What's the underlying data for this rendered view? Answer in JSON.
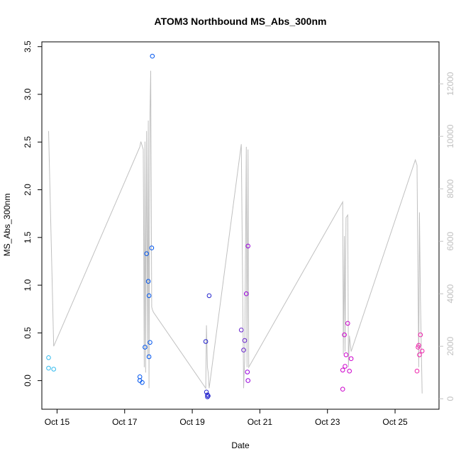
{
  "chart_data": {
    "type": "scatter",
    "title": "ATOM3 Northbound MS_Abs_300nm",
    "xlabel": "Date",
    "ylabel": "MS_Abs_300nm",
    "x_ticks": [
      "Oct 15",
      "Oct 17",
      "Oct 19",
      "Oct 21",
      "Oct 23",
      "Oct 25"
    ],
    "x_tick_values": [
      15,
      17,
      19,
      21,
      23,
      25
    ],
    "xlim": [
      14.55,
      26.3
    ],
    "ylim": [
      -0.3,
      3.55
    ],
    "y_ticks": [
      "0.0",
      "0.5",
      "1.0",
      "1.5",
      "2.0",
      "2.5",
      "3.0",
      "3.5"
    ],
    "y_tick_values": [
      0,
      0.5,
      1,
      1.5,
      2,
      2.5,
      3,
      3.5
    ],
    "y2_ticks": [
      "0",
      "2000",
      "4000",
      "6000",
      "8000",
      "10000",
      "12000"
    ],
    "y2_tick_values": [
      0,
      2000,
      4000,
      6000,
      8000,
      10000,
      12000
    ],
    "y2lim": [
      -400,
      13600
    ],
    "grid": false,
    "colors": {
      "series_line": "#c0c0c0",
      "axis": "#000000",
      "y2_axis": "#c0c0c0",
      "point_colors": [
        "#33bbee",
        "#0055ee",
        "#2222cc",
        "#6622cc",
        "#9900dd",
        "#cc00cc",
        "#ee22aa"
      ]
    },
    "series": [
      {
        "type": "scatter",
        "axis": "left",
        "x": [
          14.75,
          14.9,
          14.75,
          17.45,
          17.45,
          17.52,
          17.6,
          17.65,
          17.7,
          17.72,
          17.72,
          17.75,
          17.8,
          17.82,
          19.4,
          19.42,
          19.45,
          19.45,
          19.47,
          19.5,
          20.45,
          20.52,
          20.55,
          20.6,
          20.63,
          20.65,
          20.65,
          23.45,
          23.45,
          23.5,
          23.52,
          23.55,
          23.6,
          23.65,
          23.7,
          25.65,
          25.68,
          25.7,
          25.72,
          25.75,
          25.8
        ],
        "y": [
          0.24,
          0.12,
          0.13,
          0.04,
          0.0,
          -0.02,
          0.35,
          1.33,
          1.04,
          0.25,
          0.89,
          0.4,
          1.39,
          3.4,
          0.41,
          -0.12,
          -0.15,
          -0.17,
          -0.16,
          0.89,
          0.53,
          0.32,
          0.42,
          0.91,
          0.09,
          0.0,
          1.41,
          -0.09,
          0.11,
          0.48,
          0.15,
          0.27,
          0.6,
          0.1,
          0.23,
          0.1,
          0.35,
          0.37,
          0.27,
          0.48,
          0.31
        ],
        "colors": [
          "#33bbee",
          "#33bbee",
          "#33bbee",
          "#0055ee",
          "#0055ee",
          "#0055ee",
          "#0055ee",
          "#0055ee",
          "#0055ee",
          "#0055ee",
          "#0055ee",
          "#0055ee",
          "#0055ee",
          "#0055ee",
          "#2222cc",
          "#2222cc",
          "#2222cc",
          "#2222cc",
          "#2222cc",
          "#2222cc",
          "#6622cc",
          "#6622cc",
          "#6622cc",
          "#9900dd",
          "#9900dd",
          "#9900dd",
          "#9900dd",
          "#cc00cc",
          "#cc00cc",
          "#cc00cc",
          "#cc00cc",
          "#cc00cc",
          "#cc00cc",
          "#cc00cc",
          "#cc00cc",
          "#ee22aa",
          "#ee22aa",
          "#ee22aa",
          "#ee22aa",
          "#ee22aa",
          "#ee22aa"
        ]
      },
      {
        "type": "line",
        "axis": "right",
        "x": [
          14.75,
          14.9,
          17.45,
          17.48,
          17.55,
          17.58,
          17.6,
          17.62,
          17.65,
          17.68,
          17.7,
          17.72,
          17.75,
          17.77,
          17.8,
          17.82,
          17.85,
          19.4,
          19.42,
          19.45,
          19.47,
          19.5,
          20.45,
          20.52,
          20.55,
          20.6,
          20.62,
          20.65,
          20.67,
          23.45,
          23.47,
          23.5,
          23.52,
          23.55,
          23.6,
          23.62,
          23.65,
          23.7,
          25.6,
          25.65,
          25.7,
          25.72,
          25.75,
          25.8
        ],
        "y": [
          10200,
          2000,
          9600,
          9800,
          9500,
          1200,
          9800,
          1000,
          10200,
          1600,
          10600,
          400,
          10900,
          12500,
          3500,
          3400,
          3300,
          400,
          2800,
          1200,
          1000,
          400,
          9700,
          400,
          1500,
          9600,
          1200,
          9500,
          1200,
          7500,
          1700,
          6200,
          1800,
          6900,
          7000,
          1200,
          2400,
          1800,
          9100,
          8900,
          1200,
          7100,
          3800,
          200
        ]
      }
    ]
  }
}
